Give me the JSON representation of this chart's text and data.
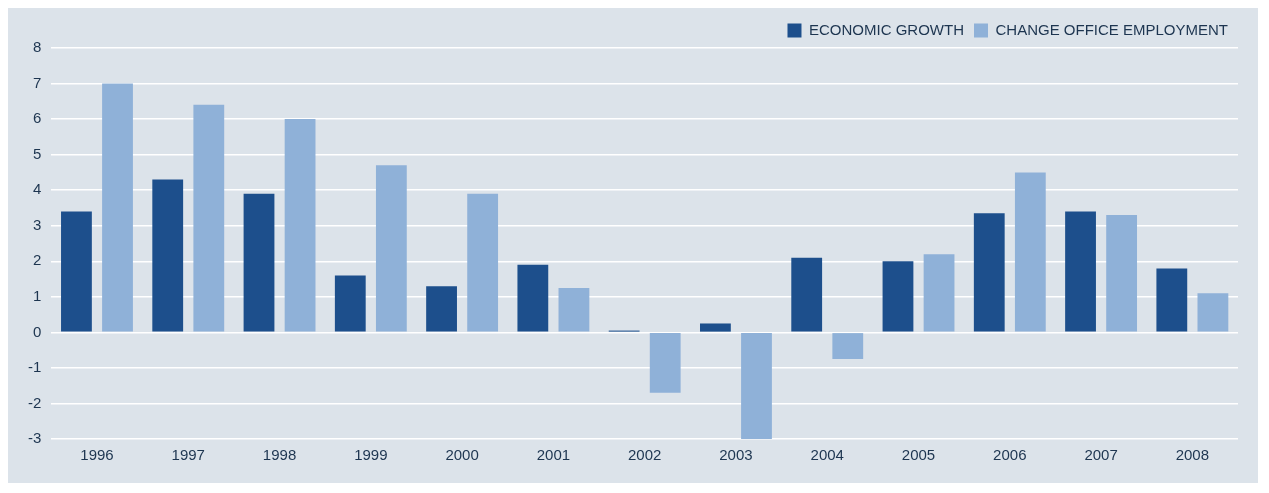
{
  "chart_data": {
    "type": "bar",
    "categories": [
      "1996",
      "1997",
      "1998",
      "1999",
      "2000",
      "2001",
      "2002",
      "2003",
      "2004",
      "2005",
      "2006",
      "2007",
      "2008"
    ],
    "series": [
      {
        "name": "ECONOMIC GROWTH",
        "color": "#1d4f8c",
        "values": [
          3.4,
          4.3,
          3.9,
          1.6,
          1.3,
          1.9,
          0.05,
          0.25,
          2.1,
          2.0,
          3.35,
          3.4,
          1.8
        ]
      },
      {
        "name": "CHANGE OFFICE EMPLOYMENT",
        "color": "#8fb1d8",
        "values": [
          7.0,
          6.4,
          6.0,
          4.7,
          3.9,
          1.25,
          -1.7,
          -3.0,
          -0.75,
          2.2,
          4.5,
          3.3,
          1.1
        ]
      }
    ],
    "ylim": [
      -3,
      8
    ],
    "yticks": [
      -3,
      -2,
      -1,
      0,
      1,
      2,
      3,
      4,
      5,
      6,
      7,
      8
    ],
    "grid": "y",
    "legend": "top right"
  }
}
